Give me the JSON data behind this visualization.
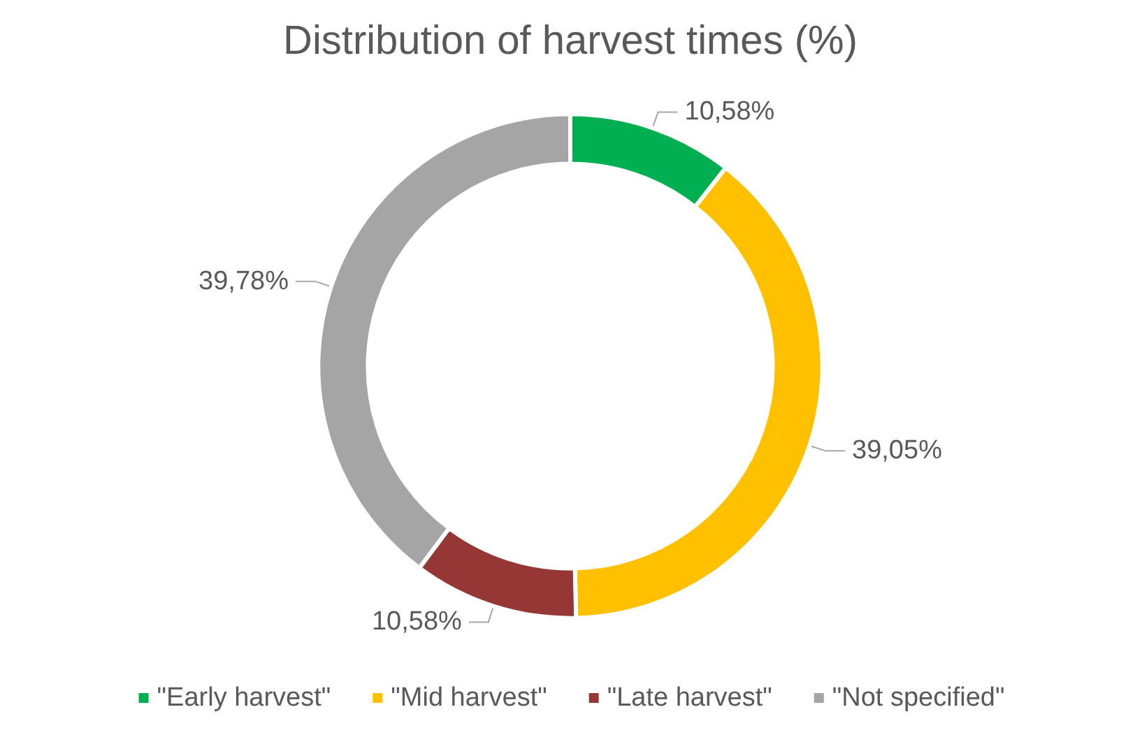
{
  "chart_data": {
    "type": "donut",
    "title": "Distribution of harvest times (%)",
    "categories": [
      "\"Early harvest\"",
      "\"Mid harvest\"",
      "\"Late harvest\"",
      "\"Not specified\""
    ],
    "values": [
      10.58,
      39.05,
      10.58,
      39.78
    ],
    "value_labels": [
      "10,58%",
      "39,05%",
      "10,58%",
      "39,78%"
    ],
    "colors": [
      "#00b050",
      "#ffc000",
      "#953735",
      "#a5a5a5"
    ],
    "legend": "bottom"
  }
}
